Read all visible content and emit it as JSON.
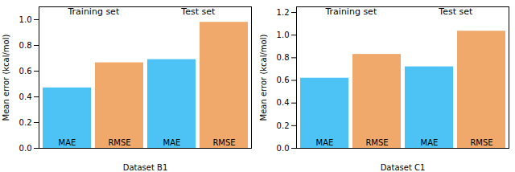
{
  "chart_data": [
    {
      "type": "bar",
      "xlabel": "Dataset B1",
      "ylabel": "Mean error (kcal/mol)",
      "annotations": [
        "Training set",
        "Test set"
      ],
      "categories": [
        "MAE",
        "RMSE",
        "MAE",
        "RMSE"
      ],
      "values": [
        0.47,
        0.665,
        0.69,
        0.98
      ],
      "colors": [
        "#4DC3F5",
        "#F0A96A",
        "#4DC3F5",
        "#F0A96A"
      ],
      "ylim": [
        0.0,
        1.1
      ],
      "yticks": [
        {
          "value": 0.0,
          "label": "0.0"
        },
        0.2,
        0.4,
        0.6,
        0.8,
        {
          "value": 1.0,
          "label": "1.0"
        }
      ]
    },
    {
      "type": "bar",
      "xlabel": "Dataset C1",
      "ylabel": "Mean error (kcal/mol)",
      "annotations": [
        "Training set",
        "Test set"
      ],
      "categories": [
        "MAE",
        "RMSE",
        "MAE",
        "RMSE"
      ],
      "values": [
        0.62,
        0.83,
        0.72,
        1.035
      ],
      "colors": [
        "#4DC3F5",
        "#F0A96A",
        "#4DC3F5",
        "#F0A96A"
      ],
      "ylim": [
        0.0,
        1.25
      ],
      "yticks": [
        {
          "value": 0.0,
          "label": "0.0"
        },
        0.2,
        0.4,
        0.6,
        0.8,
        {
          "value": 1.0,
          "label": "1.0"
        },
        1.2
      ]
    }
  ]
}
